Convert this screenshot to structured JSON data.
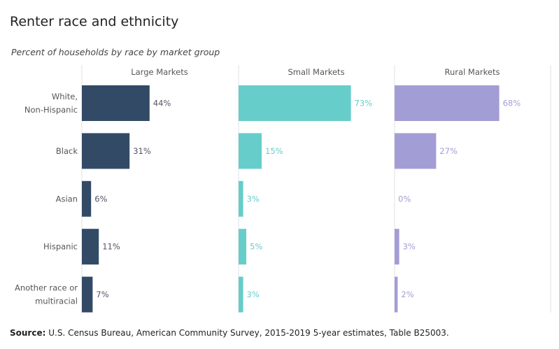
{
  "title": "Renter race and ethnicity",
  "subtitle": "Percent of households by race by market group",
  "source_label": "Source:",
  "source_text": " U.S. Census Bureau, American Community Survey, 2015-2019 5-year estimates, Table B25003.",
  "colors": {
    "large": "#324a66",
    "small": "#66cdcb",
    "rural": "#a39dd6",
    "axis": "#e0e0e0",
    "category_text": "#555555",
    "large_label": "#555566"
  },
  "chart_data": {
    "type": "bar",
    "orientation": "horizontal",
    "categories": [
      [
        "White,",
        "Non-Hispanic"
      ],
      [
        "Black"
      ],
      [
        "Asian"
      ],
      [
        "Hispanic"
      ],
      [
        "Another race or",
        "multiracial"
      ]
    ],
    "series": [
      {
        "name": "Large Markets",
        "values": [
          44,
          31,
          6,
          11,
          7
        ],
        "labels": [
          "44%",
          "31%",
          "6%",
          "11%",
          "7%"
        ]
      },
      {
        "name": "Small Markets",
        "values": [
          73,
          15,
          3,
          5,
          3
        ],
        "labels": [
          "73%",
          "15%",
          "3%",
          "5%",
          "3%"
        ]
      },
      {
        "name": "Rural Markets",
        "values": [
          68,
          27,
          0,
          3,
          2
        ],
        "labels": [
          "68%",
          "27%",
          "0%",
          "3%",
          "2%"
        ]
      }
    ],
    "xlim": [
      0,
      100
    ],
    "panels": "small-multiples",
    "grid": false
  }
}
